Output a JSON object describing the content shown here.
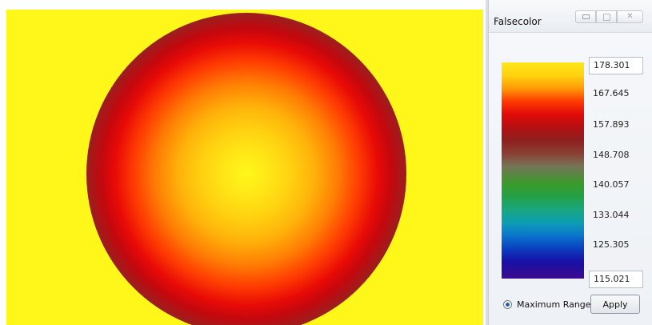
{
  "window": {
    "title": "Falsecolor",
    "buttons": {
      "minimize_icon": "minimize-icon",
      "maximize_icon": "maximize-icon",
      "close_glyph": "✕"
    }
  },
  "viewport": {
    "background_color": "#fff71a"
  },
  "colorbar": {
    "max_value": "178.301",
    "min_value": "115.021",
    "ticks": [
      "167.645",
      "157.893",
      "148.708",
      "140.057",
      "133.044",
      "125.305"
    ],
    "colors_top_to_bottom": [
      "#ffe71b",
      "#ff3a02",
      "#b51012",
      "#767457",
      "#24a146",
      "#0c9fb2",
      "#0a40c0",
      "#3b0b8f"
    ]
  },
  "controls": {
    "radio_label": "Maximum Range",
    "radio_selected": true,
    "apply_label": "Apply"
  }
}
